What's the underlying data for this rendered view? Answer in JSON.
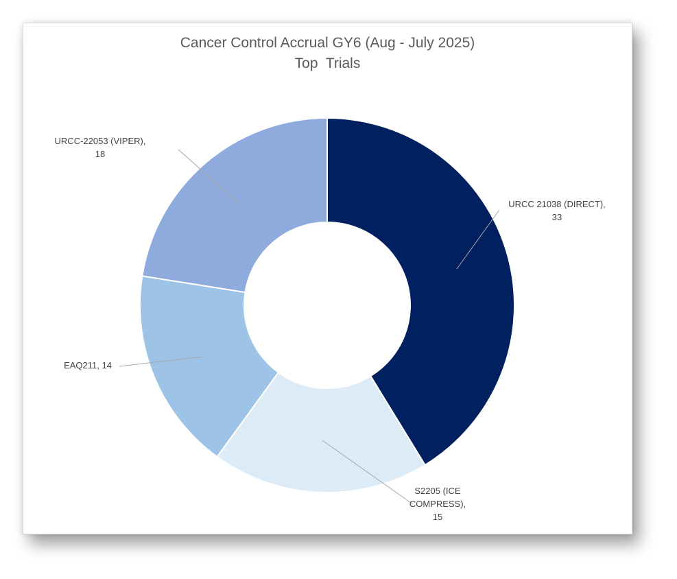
{
  "chart_data": {
    "type": "pie",
    "style": "doughnut",
    "title": "Cancer Control Accrual GY6 (Aug - July 2025)",
    "subtitle": "Top  Trials",
    "categories": [
      "URCC 21038 (DIRECT)",
      "S2205 (ICE COMPRESS)",
      "EAQ211",
      "URCC-22053 (VIPER)"
    ],
    "values": [
      33,
      15,
      14,
      18
    ],
    "colors": [
      "#002060",
      "#DDEBF7",
      "#9DC3E6",
      "#8FAADC"
    ],
    "data_labels": [
      [
        "URCC 21038 (DIRECT),",
        "33"
      ],
      [
        "S2205 (ICE",
        "COMPRESS),",
        "15"
      ],
      [
        "EAQ211, 14"
      ],
      [
        "URCC-22053 (VIPER),",
        "18"
      ]
    ],
    "legend": "none"
  }
}
